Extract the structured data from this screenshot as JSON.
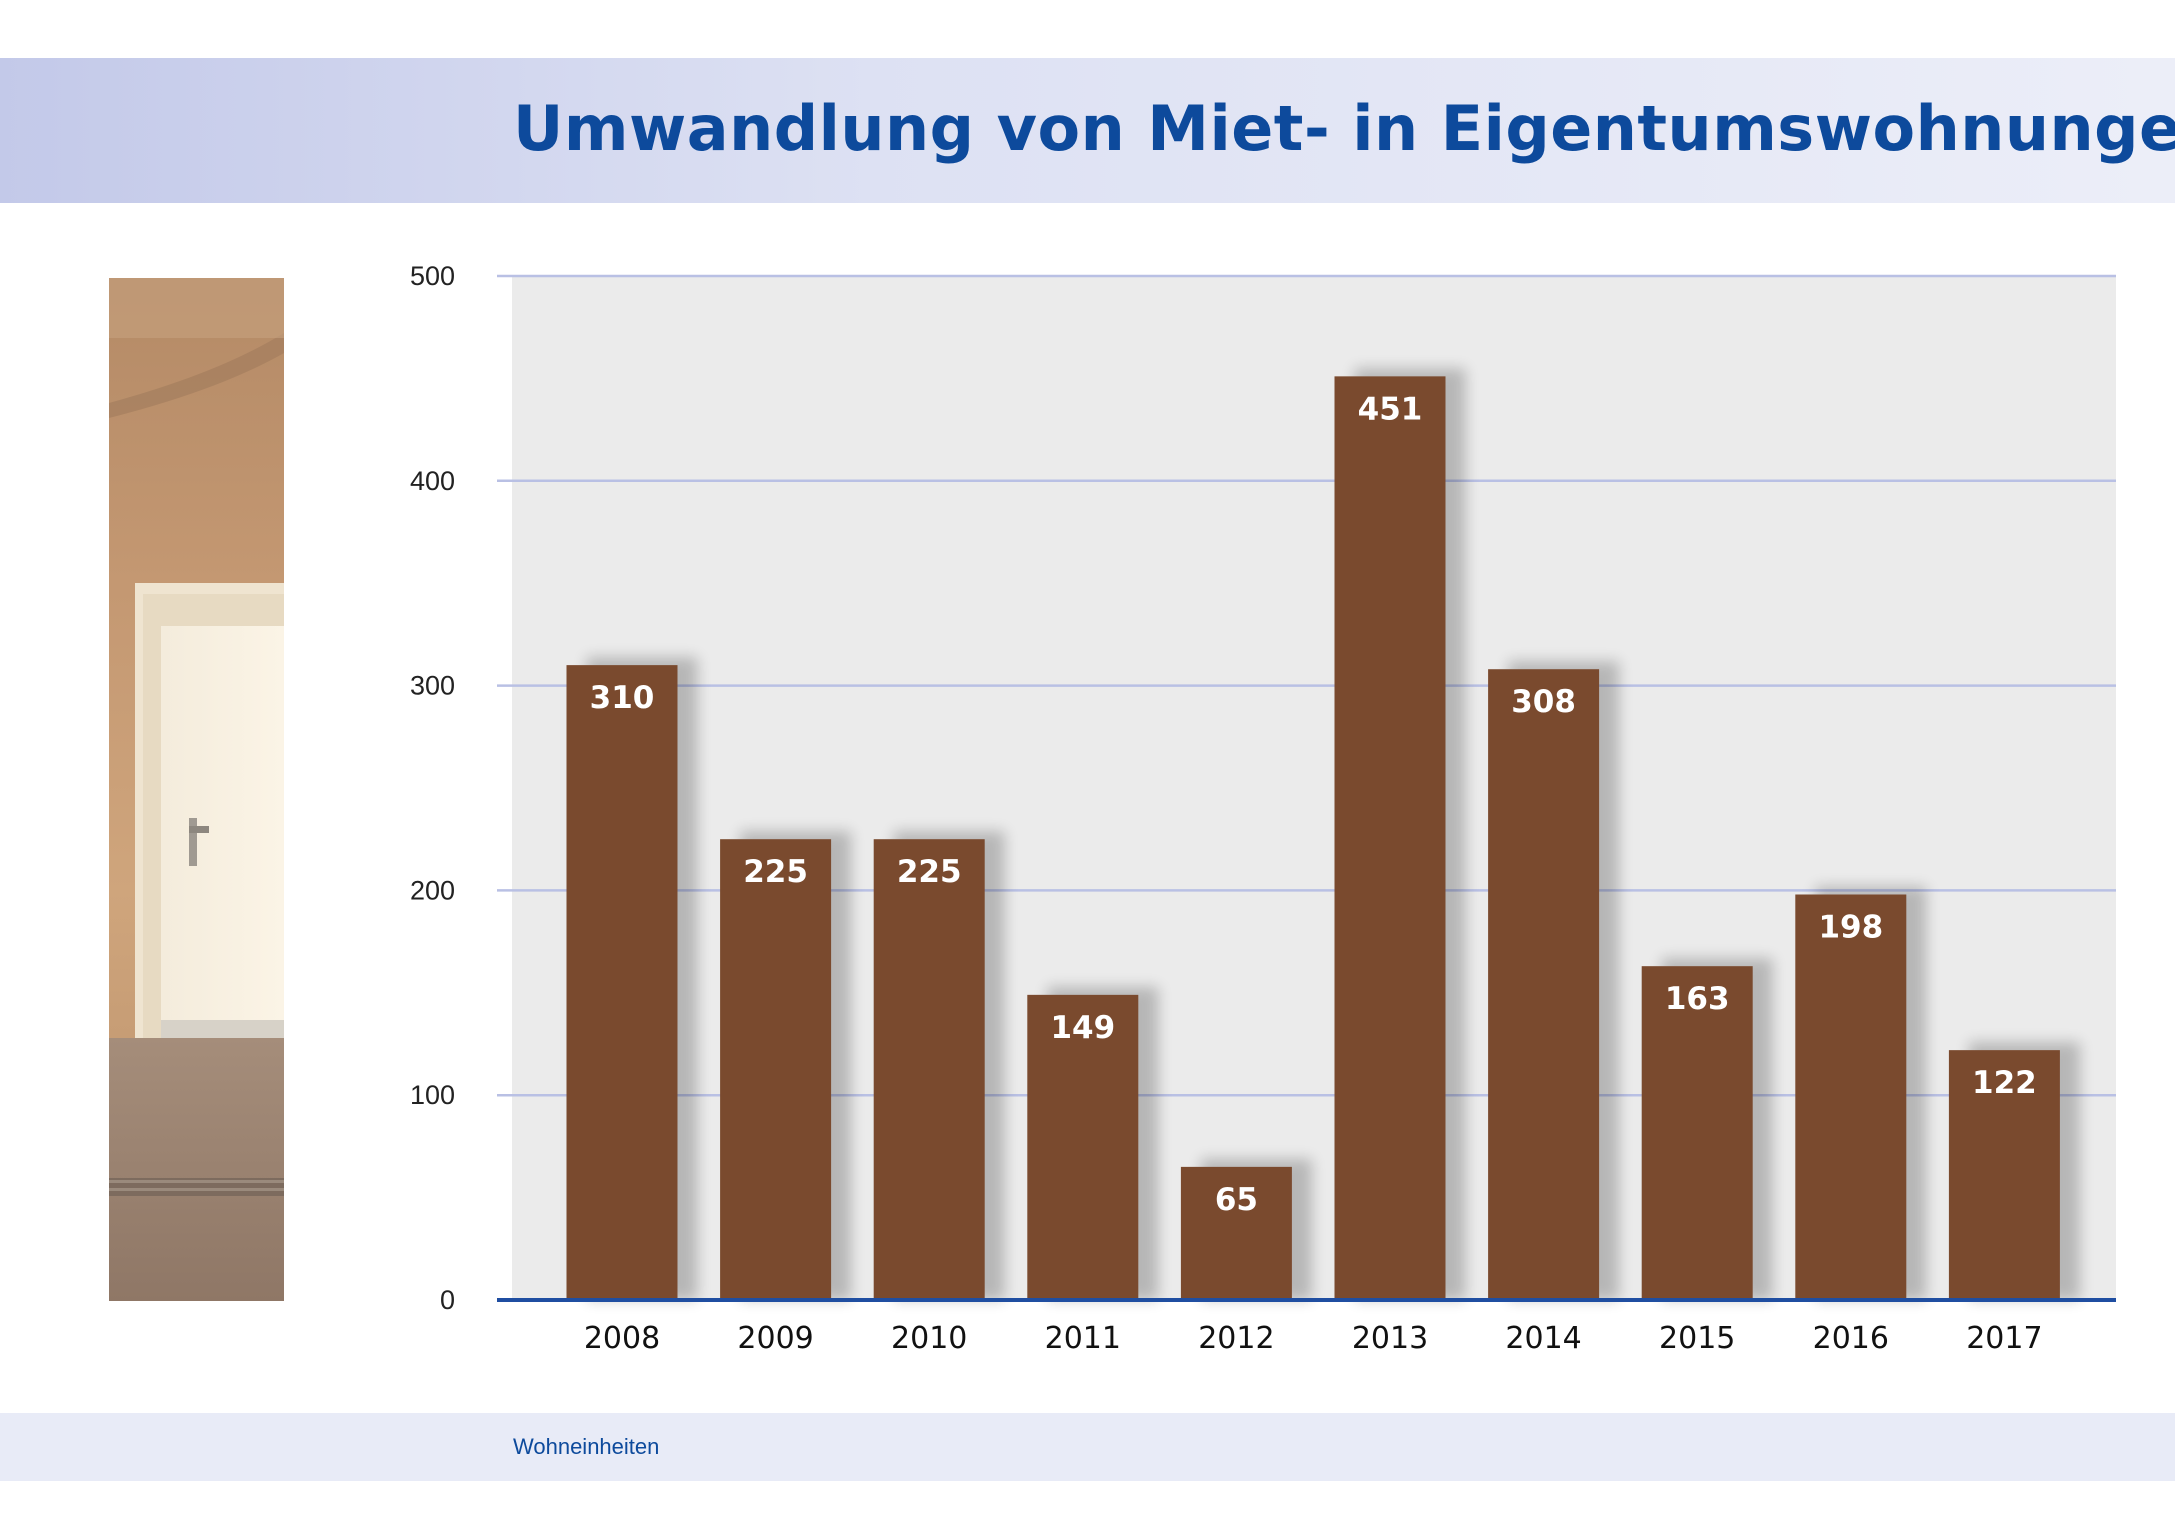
{
  "header": {
    "title": "Umwandlung von Miet- in Eigentumswohnungen"
  },
  "footer": {
    "label": "Wohneinheiten"
  },
  "photo": {
    "subject": "interior-door-photo"
  },
  "colors": {
    "accent": "#0d4a9c",
    "bar": "#7a4a2e",
    "plot_bg": "#ebebeb",
    "grid": "#b9c0e4",
    "axis": "#1f4ea1"
  },
  "chart_data": {
    "type": "bar",
    "categories": [
      "2008",
      "2009",
      "2010",
      "2011",
      "2012",
      "2013",
      "2014",
      "2015",
      "2016",
      "2017"
    ],
    "values": [
      310,
      225,
      225,
      149,
      65,
      451,
      308,
      163,
      198,
      122
    ],
    "data_labels": [
      "310",
      "225",
      "225",
      "149",
      "65",
      "451",
      "308",
      "163",
      "198",
      "122"
    ],
    "yticks": [
      0,
      100,
      200,
      300,
      400,
      500
    ],
    "ytick_labels": [
      "0",
      "100",
      "200",
      "300",
      "400",
      "500"
    ],
    "ylim": [
      0,
      500
    ],
    "grid": true,
    "legend": "none"
  }
}
